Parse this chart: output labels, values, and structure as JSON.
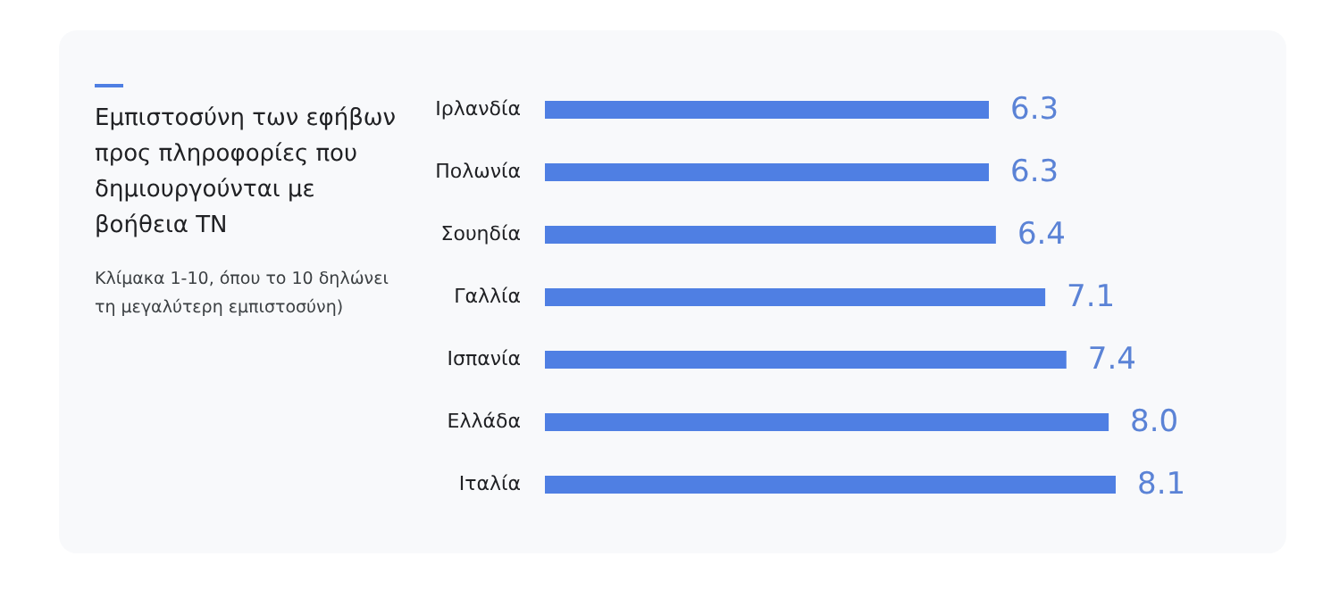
{
  "chart_data": {
    "type": "bar",
    "orientation": "horizontal",
    "title": "Εμπιστοσύνη των εφήβων προς πληροφορίες που δημιουργούνται με βοήθεια ΤΝ",
    "subtitle": "Κλίμακα 1-10, όπου το 10 δηλώνει τη μεγαλύτερη εμπιστοσύνη)",
    "categories": [
      "Ιρλανδία",
      "Πολωνία",
      "Σουηδία",
      "Γαλλία",
      "Ισπανία",
      "Ελλάδα",
      "Ιταλία"
    ],
    "values": [
      6.3,
      6.3,
      6.4,
      7.1,
      7.4,
      8.0,
      8.1
    ],
    "color": "#4f7fe3",
    "tick_labels": "y",
    "data_labels": true,
    "value_labels": [
      "6.3",
      "6.3",
      "6.4",
      "7.1",
      "7.4",
      "8.0",
      "8.1"
    ]
  }
}
